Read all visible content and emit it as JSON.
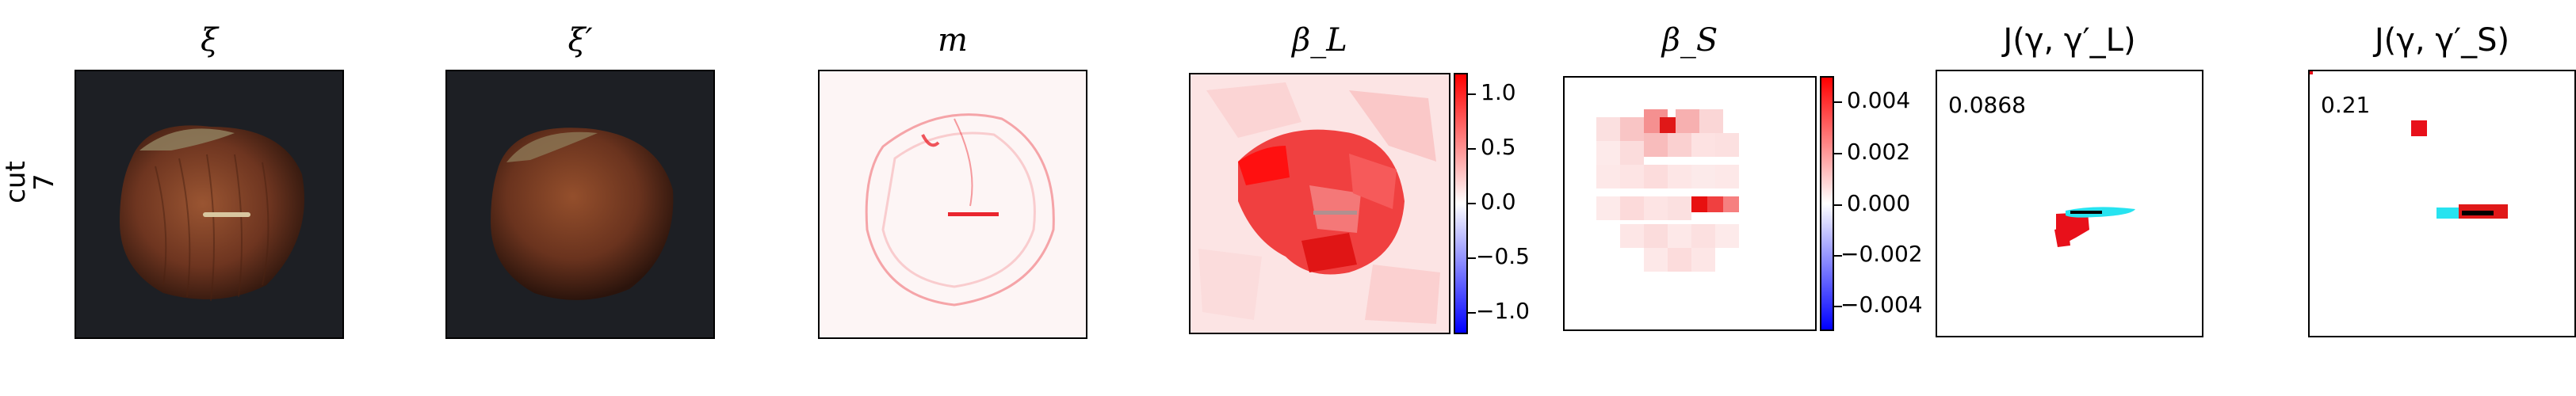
{
  "row_label": {
    "line1": "cut",
    "line2": "7"
  },
  "panels": [
    {
      "title": "ξ"
    },
    {
      "title": "ξ′"
    },
    {
      "title": "m"
    },
    {
      "title": "β_L"
    },
    {
      "title": "β_S"
    },
    {
      "title": "J(γ, γ′_L)"
    },
    {
      "title": "J(γ, γ′_S)"
    }
  ],
  "beta_L_colorbar": {
    "ticks": [
      "1.0",
      "0.5",
      "0.0",
      "−0.5",
      "−1.0"
    ],
    "colors": {
      "high": "#ff0000",
      "mid": "#ffffff",
      "low": "#0000ff"
    }
  },
  "beta_S_colorbar": {
    "ticks": [
      "0.004",
      "0.002",
      "0.000",
      "−0.002",
      "−0.004"
    ]
  },
  "scores": {
    "J_L": "0.0868",
    "J_S": "0.21"
  },
  "colors": {
    "nut_dark": "#3a1f14",
    "nut_mid": "#8a4a2a",
    "background_dark": "#1d1f24",
    "mask_red": "#e8101a",
    "mask_cyan": "#27e3f0"
  }
}
